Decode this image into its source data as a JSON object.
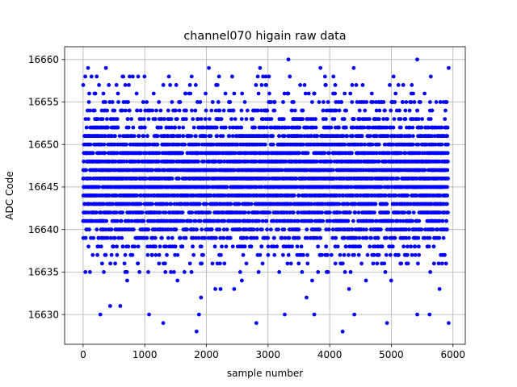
{
  "chart_data": {
    "type": "scatter",
    "title": "channel070 higain raw data",
    "xlabel": "sample number",
    "ylabel": "ADC Code",
    "xlim": [
      -300,
      6200
    ],
    "ylim": [
      16626.5,
      16661.5
    ],
    "xticks": [
      0,
      1000,
      2000,
      3000,
      4000,
      5000,
      6000
    ],
    "yticks": [
      16630,
      16635,
      16640,
      16645,
      16650,
      16655,
      16660
    ],
    "xtick_labels": [
      "0",
      "1000",
      "2000",
      "3000",
      "4000",
      "5000",
      "6000"
    ],
    "ytick_labels": [
      "16630",
      "16635",
      "16640",
      "16645",
      "16650",
      "16655",
      "16660"
    ],
    "grid": true,
    "marker_color": "#0000ff",
    "series": [
      {
        "sample_count": 5920,
        "x_start": 0,
        "x_step": 1,
        "mean": 16646.0,
        "std": 4.3,
        "value_range": [
          16628,
          16660
        ],
        "points_highlight": [
          {
            "x": 80,
            "y": 16659
          },
          {
            "x": 370,
            "y": 16659
          },
          {
            "x": 2040,
            "y": 16659
          },
          {
            "x": 2870,
            "y": 16659
          },
          {
            "x": 3330,
            "y": 16660
          },
          {
            "x": 3850,
            "y": 16659
          },
          {
            "x": 4390,
            "y": 16659
          },
          {
            "x": 5420,
            "y": 16660
          },
          {
            "x": 5930,
            "y": 16659
          },
          {
            "x": 640,
            "y": 16658
          },
          {
            "x": 1840,
            "y": 16628
          },
          {
            "x": 4210,
            "y": 16628
          },
          {
            "x": 1300,
            "y": 16629
          },
          {
            "x": 2810,
            "y": 16629
          },
          {
            "x": 4930,
            "y": 16629
          },
          {
            "x": 5930,
            "y": 16629
          },
          {
            "x": 280,
            "y": 16630
          },
          {
            "x": 1070,
            "y": 16630
          },
          {
            "x": 1880,
            "y": 16630
          },
          {
            "x": 3270,
            "y": 16630
          },
          {
            "x": 3750,
            "y": 16630
          },
          {
            "x": 4400,
            "y": 16630
          },
          {
            "x": 5420,
            "y": 16630
          },
          {
            "x": 5620,
            "y": 16630
          }
        ]
      }
    ]
  }
}
